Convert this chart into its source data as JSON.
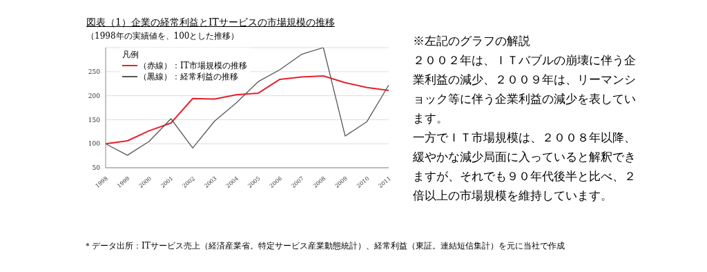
{
  "chart_data": {
    "type": "line",
    "title": "図表（1）企業の経常利益とITサービスの市場規模の推移",
    "subtitle": "（1998年の実績値を、100とした推移）",
    "categories": [
      "1998",
      "1999",
      "2000",
      "2001",
      "2002",
      "2003",
      "2004",
      "2005",
      "2006",
      "2007",
      "2008",
      "2009",
      "2010",
      "2011"
    ],
    "series": [
      {
        "name": "（赤線）：IT市場規模の推移",
        "color": "#e8202a",
        "values": [
          100,
          106,
          127,
          143,
          194,
          193,
          202,
          205,
          234,
          239,
          241,
          227,
          217,
          211
        ]
      },
      {
        "name": "（黒線）：経常利益の推移",
        "color": "#555555",
        "values": [
          100,
          76,
          105,
          152,
          91,
          147,
          185,
          229,
          254,
          286,
          300,
          116,
          146,
          222
        ]
      }
    ],
    "legend_title": "凡例",
    "legend": "top left",
    "ylim": [
      50,
      300
    ],
    "yticks": [
      50,
      100,
      150,
      200,
      250
    ],
    "grid": "y",
    "marker": "none",
    "line_style": "solid",
    "annotations": [
      "※左記のグラフの解説",
      "２００２年は、ＩＴバブルの崩壊に伴う企業利益の減少、２００９年は、リーマンショック等に伴う企業利益の減少を表しています。",
      "一方でＩＴ市場規模は、２００８年以降、緩やかな減少局面に入っていると解釈できますが、それでも９０年代後半と比べ、２倍以上の市場規模を維持しています。",
      "＊データ出所：ITサービス売上（経済産業省。特定サービス産業動態統計）、経常利益（東証。連結短信集計）を元に当社で作成"
    ]
  }
}
